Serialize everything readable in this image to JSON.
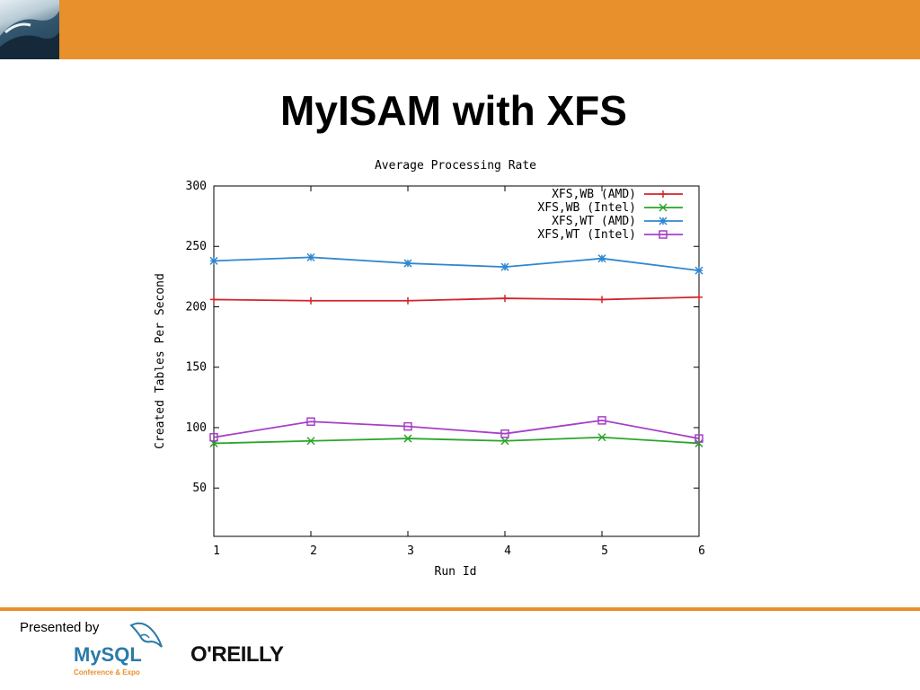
{
  "slide": {
    "title": "MyISAM with XFS",
    "presented_by": "Presented by",
    "brand_accent": "#e8902b"
  },
  "logos": {
    "mysql_text": "MySQL",
    "mysql_subtext": "Conference & Expo",
    "oreilly_text": "O'REILLY",
    "wave_icon": "wave-logo-icon",
    "dolphin_icon": "dolphin-icon"
  },
  "chart_data": {
    "type": "line",
    "title": "Average Processing Rate",
    "xlabel": "Run Id",
    "ylabel": "Created Tables Per Second",
    "x": [
      1,
      2,
      3,
      4,
      5,
      6
    ],
    "xlim": [
      1,
      6
    ],
    "ylim": [
      10,
      300
    ],
    "yticks": [
      50,
      100,
      150,
      200,
      250,
      300
    ],
    "grid": false,
    "legend_position": "top-right",
    "series": [
      {
        "name": "XFS,WB (AMD)",
        "color": "#d2242a",
        "marker": "plus",
        "values": [
          206,
          205,
          205,
          207,
          206,
          208
        ]
      },
      {
        "name": "XFS,WB (Intel)",
        "color": "#2aa52a",
        "marker": "cross",
        "values": [
          87,
          89,
          91,
          89,
          92,
          87
        ]
      },
      {
        "name": "XFS,WT (AMD)",
        "color": "#2f87d0",
        "marker": "star",
        "values": [
          238,
          241,
          236,
          233,
          240,
          230
        ]
      },
      {
        "name": "XFS,WT (Intel)",
        "color": "#a63fc8",
        "marker": "square",
        "values": [
          92,
          105,
          101,
          95,
          106,
          91
        ]
      }
    ]
  }
}
